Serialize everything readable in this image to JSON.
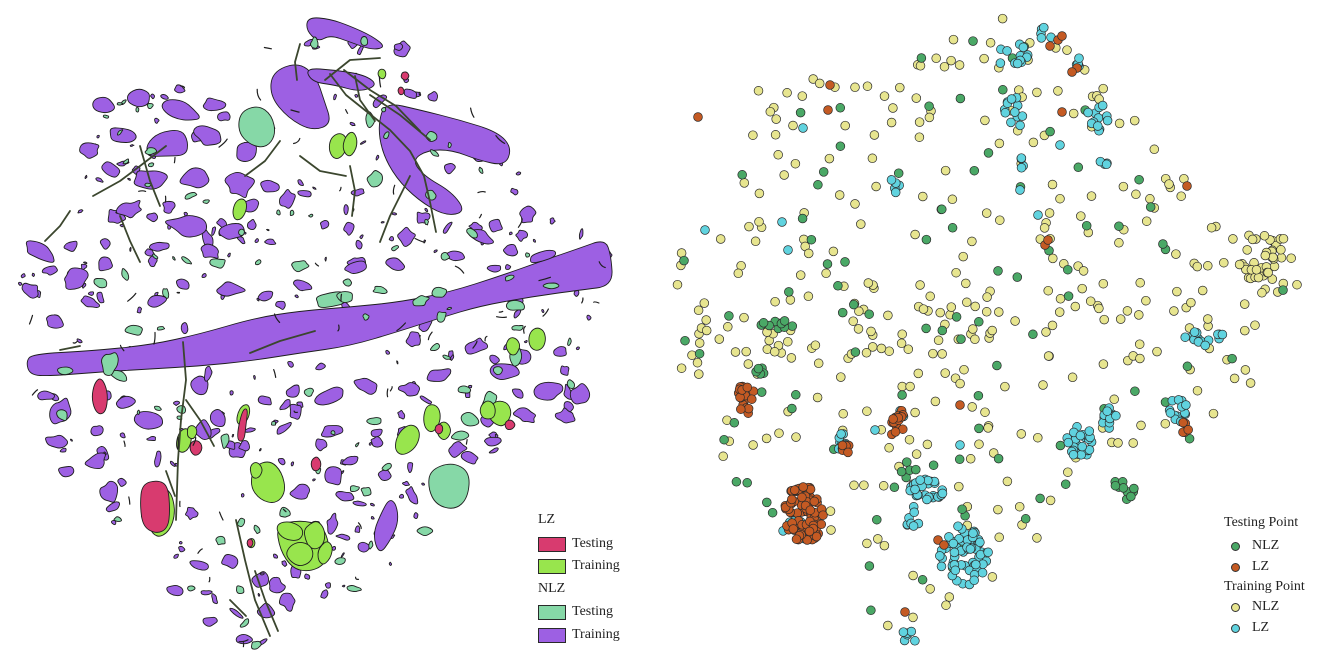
{
  "patch_legend": {
    "groups": [
      {
        "title": "LZ",
        "items": [
          {
            "label": "Testing",
            "color": "#d83b6f"
          },
          {
            "label": "Training",
            "color": "#98e54d"
          }
        ]
      },
      {
        "title": "NLZ",
        "items": [
          {
            "label": "Testing",
            "color": "#86d8a7"
          },
          {
            "label": "Training",
            "color": "#9d60e3"
          }
        ]
      }
    ]
  },
  "point_legend": {
    "groups": [
      {
        "title": "Testing Point",
        "items": [
          {
            "label": "NLZ",
            "color": "#4aa866"
          },
          {
            "label": "LZ",
            "color": "#c45a23"
          }
        ]
      },
      {
        "title": "Training Point",
        "items": [
          {
            "label": "NLZ",
            "color": "#e7e58f"
          },
          {
            "label": "LZ",
            "color": "#60d3df"
          }
        ]
      }
    ]
  },
  "map_style": {
    "outline_color": "#1e1e1e",
    "linear_feature_color": "#3b462e"
  }
}
